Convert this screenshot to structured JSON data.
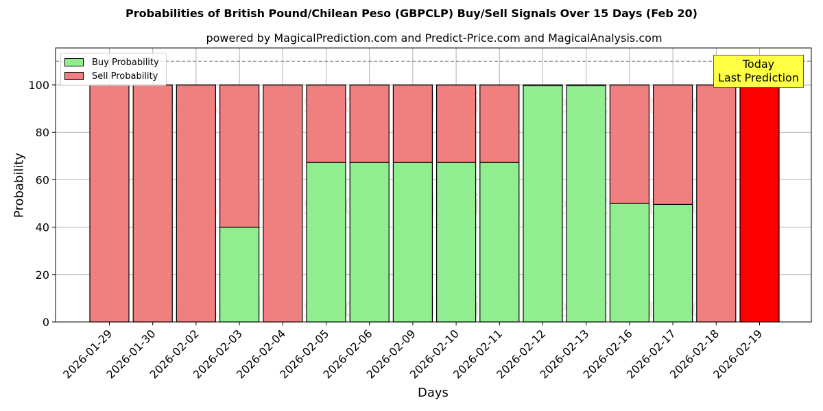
{
  "chart_data": {
    "type": "bar",
    "stacked": true,
    "title": "Probabilities of British Pound/Chilean Peso (GBPCLP) Buy/Sell Signals Over 15 Days (Feb 20)",
    "subtitle": "powered by MagicalPrediction.com and Predict-Price.com and MagicalAnalysis.com",
    "xlabel": "Days",
    "ylabel": "Probability",
    "ylim": [
      0,
      115
    ],
    "yticks": [
      0,
      20,
      40,
      60,
      80,
      100
    ],
    "grid": true,
    "reference_line": {
      "y": 110,
      "style": "dashed",
      "color": "#808080"
    },
    "legend_position": "upper left",
    "categories": [
      "2026-01-29",
      "2026-01-30",
      "2026-02-02",
      "2026-02-03",
      "2026-02-04",
      "2026-02-05",
      "2026-02-06",
      "2026-02-09",
      "2026-02-10",
      "2026-02-11",
      "2026-02-12",
      "2026-02-13",
      "2026-02-16",
      "2026-02-17",
      "2026-02-18",
      "2026-02-19"
    ],
    "series": [
      {
        "name": "Buy Probability",
        "color": "#90ee90",
        "values": [
          0,
          0,
          0,
          40,
          0,
          67.3,
          67.3,
          67.3,
          67.3,
          67.3,
          99.8,
          99.8,
          50,
          49.6,
          0,
          0
        ]
      },
      {
        "name": "Sell Probability",
        "color": "#f08080",
        "values": [
          100,
          100,
          100,
          60,
          100,
          32.7,
          32.7,
          32.7,
          32.7,
          32.7,
          0.2,
          0.2,
          50,
          50.4,
          100,
          100
        ]
      }
    ],
    "highlight": {
      "index": 15,
      "color": "#ff0000",
      "annotation": [
        "Today",
        "Last Prediction"
      ]
    },
    "watermarks": [
      "MagicalAnalysis.com",
      "MagicalPrediction.com"
    ]
  },
  "legend": {
    "buy": "Buy Probability",
    "sell": "Sell Probability"
  },
  "annotation": {
    "line1": "Today",
    "line2": "Last Prediction"
  }
}
